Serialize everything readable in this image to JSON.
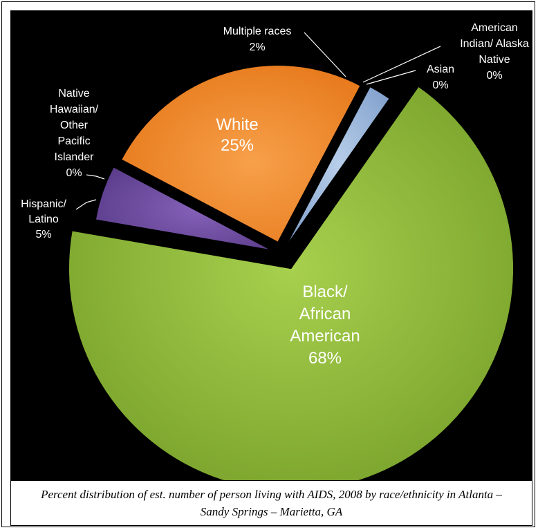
{
  "chart_data": {
    "type": "pie",
    "title": "",
    "caption": "Percent distribution of est. number of person living with AIDS, 2008 by race/ethnicity in Atlanta – Sandy Springs – Marietta, GA",
    "slices": [
      {
        "label_lines": [
          "Black/",
          "African",
          "American"
        ],
        "value": 68,
        "value_label": "68%",
        "color": "#8ab53a"
      },
      {
        "label_lines": [
          "Hispanic/",
          "Latino"
        ],
        "value": 5,
        "value_label": "5%",
        "color": "#6c4a9e"
      },
      {
        "label_lines": [
          "Native",
          "Hawaiian/",
          "Other",
          "Pacific",
          "Islander"
        ],
        "value": 0,
        "value_label": "0%",
        "color": "#4f81bd"
      },
      {
        "label_lines": [
          "White"
        ],
        "value": 25,
        "value_label": "25%",
        "color": "#f2882a"
      },
      {
        "label_lines": [
          "Multiple races"
        ],
        "value": 2,
        "value_label": "2%",
        "color": "#95b3d7"
      },
      {
        "label_lines": [
          "Asian"
        ],
        "value": 0,
        "value_label": "0%",
        "color": "#c0504d"
      },
      {
        "label_lines": [
          "American",
          "Indian/ Alaska",
          "Native"
        ],
        "value": 0,
        "value_label": "0%",
        "color": "#9bbb59"
      }
    ]
  }
}
